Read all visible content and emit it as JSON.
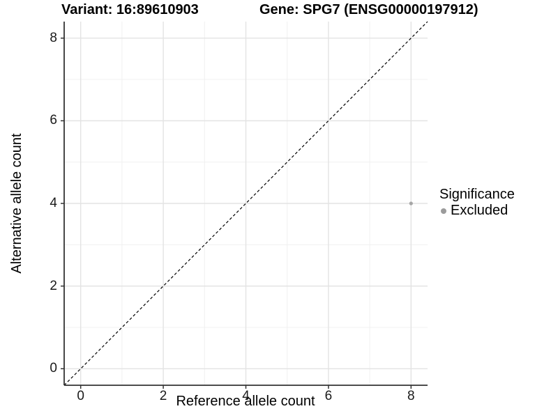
{
  "chart_data": {
    "type": "scatter",
    "title_left": "Variant: 16:89610903",
    "title_right": "Gene: SPG7 (ENSG00000197912)",
    "xlabel": "Reference allele count",
    "ylabel": "Alternative allele count",
    "xlim": [
      -0.4,
      8.4
    ],
    "ylim": [
      -0.4,
      8.4
    ],
    "x_ticks": [
      0,
      2,
      4,
      6,
      8
    ],
    "y_ticks": [
      0,
      2,
      4,
      6,
      8
    ],
    "x_minor": [
      1,
      3,
      5,
      7
    ],
    "y_minor": [
      1,
      3,
      5,
      7
    ],
    "grid": true,
    "legend_position": "right",
    "identity_line": {
      "style": "dashed",
      "from": [
        -0.4,
        -0.4
      ],
      "to": [
        8.4,
        8.4
      ],
      "color": "#000000"
    },
    "points": [
      {
        "x": 8,
        "y": 4,
        "series": "Excluded",
        "color": "#a6a6a6",
        "radius": 2.6
      }
    ],
    "legend": {
      "title": "Significance",
      "items": [
        {
          "label": "Excluded",
          "color": "#9b9b9b"
        }
      ]
    },
    "colors": {
      "background": "#ffffff",
      "grid_major": "#e3e3e3",
      "grid_minor": "#f0f0f0",
      "axis_line": "#333333",
      "tick_mark": "#333333",
      "tick_text": "#1a1a1a",
      "title_text": "#000000"
    }
  }
}
